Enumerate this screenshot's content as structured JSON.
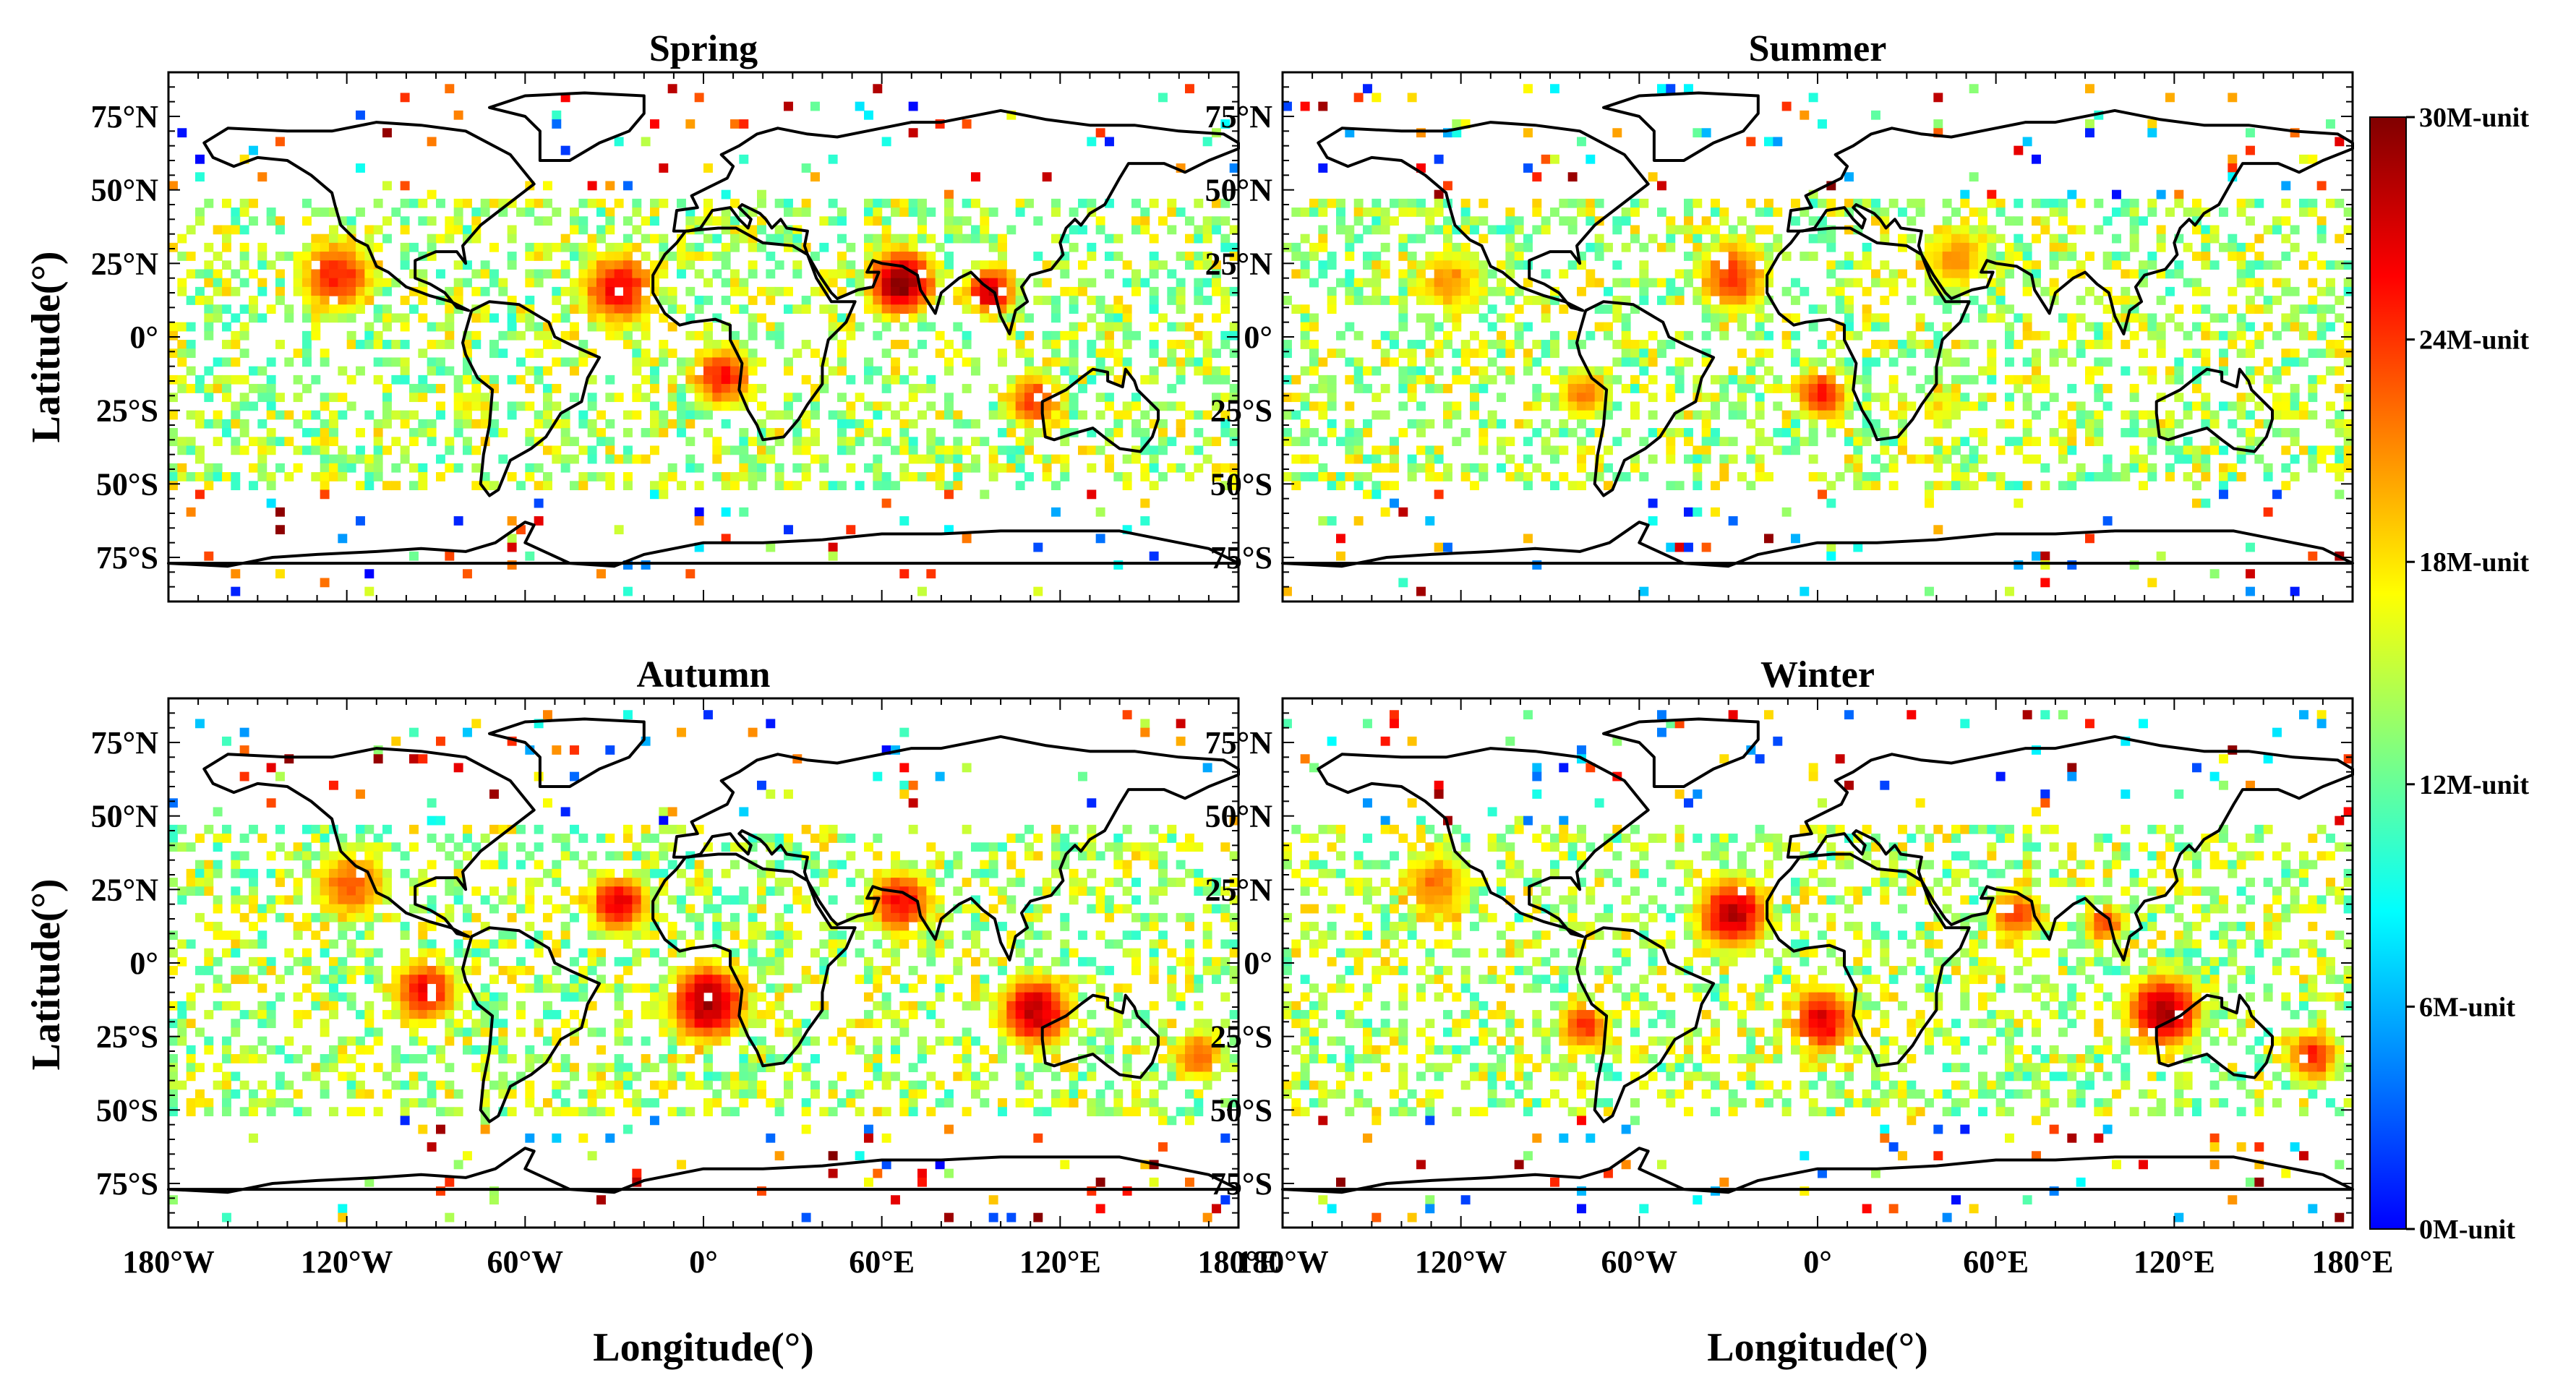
{
  "figure": {
    "x_axis_label": "Longitude(°)",
    "y_axis_label": "Latitude(°)"
  },
  "axes": {
    "lon_ticks": [
      "180°W",
      "120°W",
      "60°W",
      "0°",
      "60°E",
      "120°E",
      "180°E"
    ],
    "lat_ticks": [
      "75°N",
      "50°N",
      "25°N",
      "0°",
      "25°S",
      "50°S",
      "75°S"
    ]
  },
  "chart_data": {
    "type": "heatmap",
    "projection": "equirectangular",
    "lon_range": [
      -180,
      180
    ],
    "lat_range": [
      -90,
      90
    ],
    "colorbar": {
      "min": 0,
      "max": 30,
      "unit": "M-unit",
      "tick_values": [
        0,
        6,
        12,
        18,
        24,
        30
      ],
      "tick_labels": [
        "0M-unit",
        "6M-unit",
        "12M-unit",
        "18M-unit",
        "24M-unit",
        "30M-unit"
      ],
      "colormap": [
        "#0000ff",
        "#0080ff",
        "#00ffff",
        "#80ff80",
        "#ffff00",
        "#ff8000",
        "#ff0000",
        "#800000"
      ]
    },
    "panels": [
      {
        "title": "Spring",
        "hotspots": [
          {
            "lon": -125,
            "lat": 22,
            "value": 25,
            "spread": 14
          },
          {
            "lon": -30,
            "lat": 18,
            "value": 26,
            "spread": 14
          },
          {
            "lon": 65,
            "lat": 20,
            "value": 30,
            "spread": 12
          },
          {
            "lon": 95,
            "lat": 17,
            "value": 28,
            "spread": 9
          },
          {
            "lon": 5,
            "lat": -12,
            "value": 25,
            "spread": 12
          },
          {
            "lon": 110,
            "lat": -20,
            "value": 24,
            "spread": 11
          },
          {
            "lon": -80,
            "lat": -22,
            "value": 18,
            "spread": 9
          }
        ]
      },
      {
        "title": "Summer",
        "hotspots": [
          {
            "lon": -125,
            "lat": 20,
            "value": 21,
            "spread": 14
          },
          {
            "lon": -30,
            "lat": 22,
            "value": 24,
            "spread": 14
          },
          {
            "lon": 45,
            "lat": 28,
            "value": 21,
            "spread": 14
          },
          {
            "lon": -80,
            "lat": -18,
            "value": 22,
            "spread": 10
          },
          {
            "lon": 0,
            "lat": -18,
            "value": 25,
            "spread": 10
          },
          {
            "lon": 40,
            "lat": -22,
            "value": 18,
            "spread": 9
          }
        ]
      },
      {
        "title": "Autumn",
        "hotspots": [
          {
            "lon": -120,
            "lat": 28,
            "value": 23,
            "spread": 14
          },
          {
            "lon": -30,
            "lat": 22,
            "value": 27,
            "spread": 11
          },
          {
            "lon": 65,
            "lat": 22,
            "value": 26,
            "spread": 12
          },
          {
            "lon": -95,
            "lat": -8,
            "value": 26,
            "spread": 12
          },
          {
            "lon": 0,
            "lat": -12,
            "value": 29,
            "spread": 14
          },
          {
            "lon": 110,
            "lat": -15,
            "value": 28,
            "spread": 13
          },
          {
            "lon": 165,
            "lat": -30,
            "value": 23,
            "spread": 10
          }
        ]
      },
      {
        "title": "Winter",
        "hotspots": [
          {
            "lon": -130,
            "lat": 28,
            "value": 22,
            "spread": 14
          },
          {
            "lon": -30,
            "lat": 18,
            "value": 28,
            "spread": 13
          },
          {
            "lon": 65,
            "lat": 18,
            "value": 24,
            "spread": 10
          },
          {
            "lon": 95,
            "lat": 15,
            "value": 24,
            "spread": 8
          },
          {
            "lon": -80,
            "lat": -20,
            "value": 24,
            "spread": 10
          },
          {
            "lon": 0,
            "lat": -18,
            "value": 27,
            "spread": 12
          },
          {
            "lon": 115,
            "lat": -15,
            "value": 29,
            "spread": 13
          },
          {
            "lon": 165,
            "lat": -30,
            "value": 25,
            "spread": 10
          }
        ]
      }
    ]
  }
}
